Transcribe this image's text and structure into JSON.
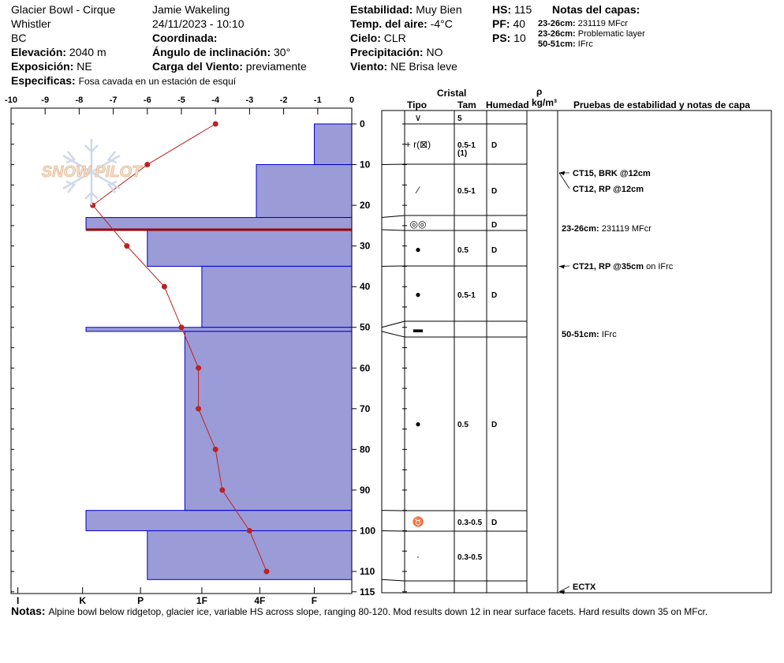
{
  "header": {
    "location": "Glacier Bowl - Cirque",
    "area": "Whistler",
    "region": "BC",
    "elevation_label": "Elevación:",
    "elevation_value": "2040 m",
    "aspect_label": "Exposición:",
    "aspect_value": "NE",
    "specifics_label": "Especificas:",
    "specifics_value": "Fosa cavada en un estación de esquí",
    "observer": "Jamie  Wakeling",
    "datetime": "24/11/2023 - 10:10",
    "coordinates_label": "Coordinada:",
    "slope_label": "Ángulo de inclinación:",
    "slope_value": "30°",
    "windload_label": "Carga del Viento:",
    "windload_value": "previamente",
    "stability_label": "Estabilidad:",
    "stability_value": "Muy Bien",
    "airtemp_label": "Temp. del aire:",
    "airtemp_value": "-4°C",
    "sky_label": "Cielo:",
    "sky_value": "CLR",
    "precip_label": "Precipitación:",
    "precip_value": "NO",
    "wind_label": "Viento:",
    "wind_value": "NE Brisa leve",
    "hs_label": "HS:",
    "hs_value": "115",
    "pf_label": "PF:",
    "pf_value": "40",
    "ps_label": "PS:",
    "ps_value": "10",
    "layer_notes_title": "Notas del capas:",
    "layer_notes": [
      {
        "depth": "23-26cm:",
        "text": "231119 MFcr"
      },
      {
        "depth": "23-26cm:",
        "text": "Problematic layer"
      },
      {
        "depth": "50-51cm:",
        "text": "IFrc"
      }
    ]
  },
  "table_headers": {
    "crystal": "Cristal",
    "type": "Tipo",
    "size": "Tam",
    "moisture": "Humedad",
    "density_symbol": "ρ",
    "density_unit": "kg/m³",
    "tests": "Pruebas de estabilidad y notas de capa"
  },
  "notes_label": "Notas:",
  "notes_text": "Alpine bowl below ridgetop, glacier ice, variable HS across slope, ranging 80-120. Mod results down 12 in near surface facets. Hard results down 35 on MFcr.",
  "watermark_text": "SNOW PILOT",
  "chart_data": {
    "type": "snow-profile",
    "temperature_axis": {
      "ticks": [
        -10,
        -9,
        -8,
        -7,
        -6,
        -5,
        -4,
        -3,
        -2,
        -1,
        0
      ],
      "range": [
        -10,
        0
      ]
    },
    "hardness_axis": {
      "labels": [
        "I",
        "K",
        "P",
        "1F",
        "4F",
        "F"
      ]
    },
    "depth_axis": {
      "ticks": [
        0,
        10,
        20,
        30,
        40,
        50,
        60,
        70,
        80,
        90,
        100,
        110,
        115
      ],
      "range": [
        0,
        115
      ]
    },
    "colors": {
      "layer_fill": "#9b9bd8",
      "layer_stroke": "#0000cc",
      "temp_line": "#bb2222",
      "problem_layer": "#990000"
    },
    "hardness_layers": [
      {
        "top": 0,
        "bottom": 10,
        "hardness_temp_equiv": -1.1
      },
      {
        "top": 10,
        "bottom": 23,
        "hardness_temp_equiv": -2.8
      },
      {
        "top": 23,
        "bottom": 26,
        "hardness_temp_equiv": -7.8
      },
      {
        "top": 26,
        "bottom": 35,
        "hardness_temp_equiv": -6.0
      },
      {
        "top": 35,
        "bottom": 50,
        "hardness_temp_equiv": -4.4
      },
      {
        "top": 50,
        "bottom": 51,
        "hardness_temp_equiv": -7.8
      },
      {
        "top": 51,
        "bottom": 95,
        "hardness_temp_equiv": -4.9
      },
      {
        "top": 95,
        "bottom": 100,
        "hardness_temp_equiv": -7.8
      },
      {
        "top": 100,
        "bottom": 112,
        "hardness_temp_equiv": -6.0
      }
    ],
    "problem_layer_depth": 26,
    "temperature_profile": [
      {
        "depth": 0,
        "temp": -4.0
      },
      {
        "depth": 10,
        "temp": -6.0
      },
      {
        "depth": 20,
        "temp": -7.6
      },
      {
        "depth": 30,
        "temp": -6.6
      },
      {
        "depth": 40,
        "temp": -5.5
      },
      {
        "depth": 50,
        "temp": -5.0
      },
      {
        "depth": 60,
        "temp": -4.5
      },
      {
        "depth": 70,
        "temp": -4.5
      },
      {
        "depth": 80,
        "temp": -4.0
      },
      {
        "depth": 90,
        "temp": -3.8
      },
      {
        "depth": 100,
        "temp": -3.0
      },
      {
        "depth": 110,
        "temp": -2.5
      }
    ],
    "crystal_rows": [
      {
        "top": 0,
        "bottom": 0,
        "type": "∨",
        "size": "5",
        "moisture": ""
      },
      {
        "top": 0,
        "bottom": 10,
        "type": "+ r(⊠)",
        "size": "0.5-1",
        "size_sub": "(1)",
        "moisture": "D"
      },
      {
        "top": 10,
        "bottom": 23,
        "type": "⁄",
        "size": "0.5-1",
        "moisture": "D"
      },
      {
        "top": 23,
        "bottom": 26,
        "type": "◎◎",
        "size": "",
        "moisture": "D"
      },
      {
        "top": 26,
        "bottom": 35,
        "type": "●",
        "size": "0.5",
        "moisture": "D"
      },
      {
        "top": 35,
        "bottom": 50,
        "type": "●",
        "size": "0.5-1",
        "moisture": "D"
      },
      {
        "top": 50,
        "bottom": 51,
        "type": "▬",
        "size": "",
        "moisture": ""
      },
      {
        "top": 51,
        "bottom": 95,
        "type": "●",
        "size": "0.5",
        "moisture": "D"
      },
      {
        "top": 95,
        "bottom": 100,
        "type": "♉",
        "size": "0.3-0.5",
        "moisture": "D"
      },
      {
        "top": 100,
        "bottom": 112,
        "type": "·",
        "size": "0.3-0.5",
        "moisture": ""
      }
    ],
    "stability_tests": [
      {
        "depth": 12,
        "label": "CT15, BRK @12cm",
        "note": ""
      },
      {
        "depth": 12,
        "label": "CT12, RP @12cm",
        "note": ""
      },
      {
        "depth": 35,
        "label": "CT21, RP @35cm",
        "note": "on IFrc"
      },
      {
        "depth": 115,
        "label": "ECTX",
        "note": ""
      }
    ],
    "layer_annotations": [
      {
        "depth": 26,
        "label": "23-26cm:",
        "text": "231119 MFcr"
      },
      {
        "depth": 51,
        "label": "50-51cm:",
        "text": "IFrc"
      }
    ]
  }
}
